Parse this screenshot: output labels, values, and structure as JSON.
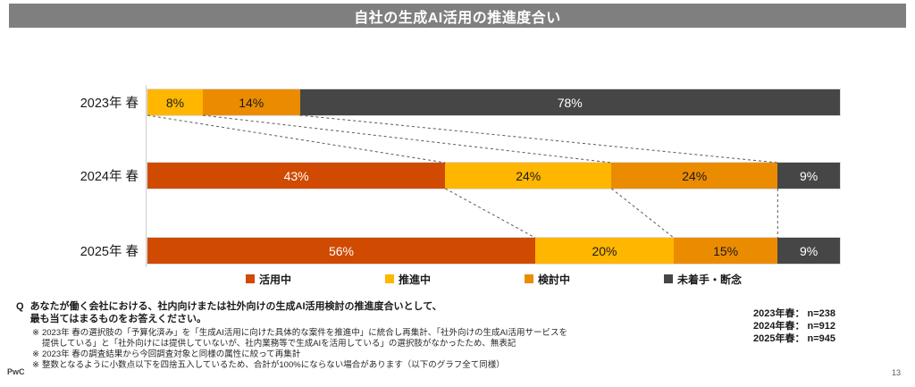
{
  "title": "自社の生成AI活用の推進度合い",
  "question": {
    "prefix": "Q",
    "lines": [
      "あなたが働く会社における、社内向けまたは社外向けの生成AI活用検討の推進度合いとして、",
      "最も当てはまるものをお答えください。"
    ]
  },
  "notes": [
    {
      "marker": "※",
      "lines": [
        "2023年 春の選択肢の「予算化済み」を「生成AI活用に向けた具体的な案件を推進中」に統合し再集計、「社外向けの生成AI活用サービスを",
        "提供している」と「社外向けには提供していないが、社内業務等で生成AIを活用している」の選択肢がなかったため、無表記"
      ]
    },
    {
      "marker": "※",
      "lines": [
        "2023年 春の調査結果から今回調査対象と同様の属性に絞って再集計"
      ]
    },
    {
      "marker": "※",
      "lines": [
        "整数となるように小数点以下を四捨五入しているため、合計が100%にならない場合があります（以下のグラフ全て同様）"
      ]
    }
  ],
  "sample_sizes": [
    "2023年春： n=238",
    "2024年春： n=912",
    "2025年春： n=945"
  ],
  "footer": {
    "brand": "PwC",
    "page_number": "13"
  },
  "colors": {
    "title_bar_bg": "#7F7F7F",
    "title_text": "#FFFFFF",
    "axis_line": "#CFCFCF",
    "connector": "#595959"
  },
  "chart_data": {
    "type": "bar",
    "orientation": "horizontal",
    "stacked": true,
    "unit": "%",
    "xlim": [
      0,
      100
    ],
    "grid": false,
    "legend_position": "bottom",
    "value_labels": true,
    "zero_values_hidden": true,
    "categories": [
      "2023年 春",
      "2024年 春",
      "2025年 春"
    ],
    "series": [
      {
        "name": "活用中",
        "color": "#D04A02",
        "label_color": "#FFFFFF",
        "values": [
          0,
          43,
          56
        ]
      },
      {
        "name": "推進中",
        "color": "#FFB600",
        "label_color": "#1A1A1A",
        "values": [
          8,
          24,
          20
        ]
      },
      {
        "name": "検討中",
        "color": "#EB8C00",
        "label_color": "#1A1A1A",
        "values": [
          14,
          24,
          15
        ]
      },
      {
        "name": "未着手・断念",
        "color": "#464646",
        "label_color": "#FFFFFF",
        "values": [
          78,
          9,
          9
        ]
      }
    ]
  }
}
